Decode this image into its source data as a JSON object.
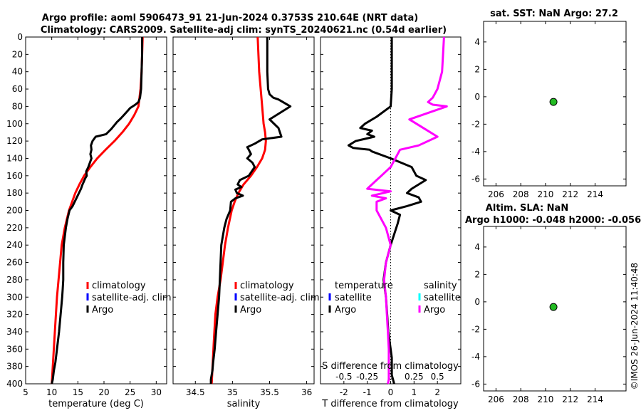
{
  "header": {
    "title_line1": "Argo profile: aoml 5906473_91 21-Jun-2024 0.3753S 210.64E (NRT data)",
    "title_line2": "Climatology: CARS2009. Satellite-adj clim: synTS_20240621.nc (0.54d earlier)",
    "sst_title": "sat. SST: NaN Argo: 27.2",
    "sla_title_line1": "Altim. SLA: NaN",
    "sla_title_line2": "Argo h1000: -0.048 h2000: -0.056",
    "timestamp": "©IMOS 26-Jun-2024 11:40:48"
  },
  "colors": {
    "climatology": "#ff0000",
    "satellite": "#0000ff",
    "argo": "#000000",
    "salinity_argo": "#ff00ff",
    "salinity_satellite": "#00ffff",
    "marker": "#22bb22"
  },
  "legends": {
    "temp": [
      "climatology",
      "satellite-adj. clim",
      "Argo"
    ],
    "sal": [
      "climatology",
      "satellite-adj. clim",
      "Argo"
    ],
    "diff_temp_heading": "temperature",
    "diff_sal_heading": "salinity",
    "diff_temp": [
      "satellite",
      "Argo"
    ],
    "diff_sal": [
      "satellite",
      "Argo"
    ]
  },
  "chart_data": [
    {
      "id": "temperature",
      "type": "line",
      "xlabel": "temperature (deg C)",
      "ylabel": "",
      "xlim": [
        5,
        32
      ],
      "ylim": [
        400,
        0
      ],
      "xticks": [
        5,
        10,
        15,
        20,
        25,
        30
      ],
      "yticks": [
        0,
        20,
        40,
        60,
        80,
        100,
        120,
        140,
        160,
        180,
        200,
        220,
        240,
        260,
        280,
        300,
        320,
        340,
        360,
        380,
        400
      ],
      "series": [
        {
          "name": "climatology",
          "color": "#ff0000",
          "x": [
            27.4,
            27.2,
            27.0,
            26.6,
            25.8,
            24.8,
            23.5,
            22.0,
            20.3,
            18.7,
            17.4,
            16.2,
            15.3,
            14.5,
            13.9,
            13.3,
            12.9,
            12.5,
            12.2,
            11.9,
            11.6,
            11.3,
            11.0,
            10.8,
            10.5,
            10.2,
            10.0
          ],
          "y": [
            0,
            40,
            60,
            80,
            90,
            100,
            110,
            120,
            130,
            140,
            150,
            160,
            170,
            180,
            190,
            200,
            210,
            220,
            230,
            240,
            260,
            280,
            300,
            320,
            350,
            380,
            400
          ]
        },
        {
          "name": "Argo",
          "color": "#000000",
          "x": [
            27.3,
            27.3,
            27.2,
            27.1,
            26.9,
            26.6,
            26.0,
            25.0,
            24.4,
            23.8,
            23.2,
            22.5,
            21.4,
            20.4,
            18.4,
            17.8,
            17.5,
            17.6,
            17.4,
            17.6,
            17.3,
            17.0,
            16.6,
            16.7,
            16.4,
            16.2,
            15.9,
            15.6,
            15.2,
            14.8,
            14.4,
            14.0,
            13.4,
            13.0,
            12.7,
            12.5,
            12.3,
            12.2,
            12.2,
            12.1,
            12.0,
            11.7,
            11.4,
            11.0,
            10.7,
            10.4,
            10.2,
            10.0
          ],
          "y": [
            0,
            20,
            40,
            60,
            70,
            75,
            78,
            82,
            86,
            90,
            94,
            98,
            106,
            112,
            115,
            120,
            125,
            130,
            135,
            140,
            145,
            150,
            155,
            160,
            163,
            166,
            170,
            175,
            180,
            185,
            190,
            195,
            200,
            210,
            220,
            230,
            240,
            260,
            280,
            290,
            300,
            320,
            340,
            360,
            375,
            385,
            395,
            400
          ]
        }
      ],
      "legend": [
        "climatology",
        "satellite-adj. clim",
        "Argo"
      ]
    },
    {
      "id": "salinity",
      "type": "line",
      "xlabel": "salinity",
      "ylabel": "",
      "xlim": [
        34.2,
        36.1
      ],
      "ylim": [
        400,
        0
      ],
      "xticks": [
        34.5,
        35,
        35.5,
        36
      ],
      "series": [
        {
          "name": "climatology",
          "color": "#ff0000",
          "x": [
            35.34,
            35.36,
            35.38,
            35.4,
            35.42,
            35.44,
            35.45,
            35.44,
            35.4,
            35.33,
            35.25,
            35.15,
            35.08,
            35.03,
            34.99,
            34.94,
            34.9,
            34.87,
            34.84,
            34.8,
            34.77,
            34.75,
            34.72
          ],
          "y": [
            0,
            40,
            60,
            80,
            100,
            110,
            120,
            130,
            140,
            150,
            160,
            170,
            180,
            190,
            200,
            220,
            240,
            260,
            280,
            300,
            320,
            350,
            400
          ]
        },
        {
          "name": "Argo",
          "color": "#000000",
          "x": [
            35.47,
            35.47,
            35.48,
            35.5,
            35.55,
            35.62,
            35.78,
            35.5,
            35.62,
            35.66,
            35.4,
            35.3,
            35.2,
            35.22,
            35.25,
            35.2,
            35.27,
            35.3,
            35.22,
            35.1,
            35.07,
            35.12,
            35.04,
            35.06,
            35.14,
            35.04,
            34.98,
            34.97,
            34.92,
            34.89,
            34.85,
            34.84,
            34.83,
            34.82,
            34.8,
            34.78,
            34.76,
            34.74,
            34.73,
            34.71,
            34.71
          ],
          "y": [
            0,
            40,
            60,
            66,
            70,
            72,
            80,
            95,
            105,
            115,
            118,
            123,
            127,
            130,
            135,
            140,
            145,
            150,
            160,
            165,
            170,
            173,
            176,
            180,
            183,
            186,
            190,
            200,
            210,
            220,
            240,
            260,
            280,
            300,
            320,
            340,
            360,
            375,
            385,
            395,
            400
          ]
        }
      ],
      "legend": [
        "climatology",
        "satellite-adj. clim",
        "Argo"
      ]
    },
    {
      "id": "difference",
      "type": "line",
      "xlabel": "T difference from climatology",
      "top_label": "S difference from climatology",
      "xlim": [
        -3,
        3
      ],
      "ylim": [
        400,
        0
      ],
      "xticks": [
        -2,
        -1,
        0,
        1,
        2
      ],
      "s_ticks": [
        -0.5,
        -0.25,
        0,
        0.25,
        0.5
      ],
      "series": [
        {
          "name": "temperature Argo",
          "color": "#000000",
          "x": [
            0.05,
            0.05,
            0.05,
            0.0,
            -0.6,
            -1.1,
            -1.3,
            -0.8,
            -1.0,
            -0.7,
            -1.5,
            -1.8,
            -1.6,
            -0.9,
            -0.8,
            0.0,
            0.9,
            1.1,
            1.5,
            1.2,
            0.9,
            0.7,
            1.2,
            1.3,
            0.7,
            0.0,
            0.4,
            0.3,
            0.0,
            -0.2,
            -0.3,
            -0.2,
            -0.15,
            -0.1,
            0.0,
            0.05,
            0.05,
            0.05,
            0.1,
            0.15
          ],
          "y": [
            0,
            30,
            60,
            80,
            92,
            100,
            105,
            108,
            112,
            115,
            120,
            125,
            128,
            130,
            132,
            140,
            150,
            160,
            165,
            170,
            175,
            180,
            185,
            190,
            195,
            200,
            205,
            215,
            240,
            260,
            280,
            300,
            320,
            340,
            360,
            370,
            380,
            390,
            395,
            400
          ]
        },
        {
          "name": "salinity Argo",
          "color": "#ff00ff",
          "x": [
            0.57,
            0.55,
            0.5,
            0.45,
            0.4,
            0.45,
            0.6,
            0.2,
            0.35,
            0.5,
            0.3,
            0.1,
            0.05,
            0.0,
            -0.1,
            -0.15,
            -0.2,
            -0.25,
            0.0,
            -0.2,
            -0.05,
            -0.15,
            -0.15,
            -0.05,
            0.0,
            -0.05,
            -0.07,
            -0.05,
            -0.04,
            -0.03,
            -0.02,
            -0.02,
            -0.02,
            -0.03
          ],
          "y": [
            0,
            40,
            60,
            70,
            75,
            78,
            80,
            95,
            105,
            115,
            125,
            130,
            140,
            150,
            160,
            165,
            170,
            175,
            178,
            183,
            186,
            190,
            200,
            220,
            240,
            260,
            280,
            300,
            320,
            340,
            360,
            380,
            395,
            400
          ]
        }
      ],
      "legend_temperature": [
        "satellite",
        "Argo"
      ],
      "legend_salinity": [
        "satellite",
        "Argo"
      ]
    },
    {
      "id": "sst-map",
      "type": "scatter",
      "title": "sat. SST: NaN Argo: 27.2",
      "xlim": [
        205,
        216.5
      ],
      "ylim": [
        -6.5,
        5.5
      ],
      "xticks": [
        206,
        208,
        210,
        212,
        214
      ],
      "yticks": [
        -6,
        -4,
        -2,
        0,
        2,
        4
      ],
      "points": [
        {
          "x": 210.64,
          "y": -0.3753
        }
      ]
    },
    {
      "id": "sla-map",
      "type": "scatter",
      "title": "Altim. SLA: NaN",
      "xlim": [
        205,
        216.5
      ],
      "ylim": [
        -6.5,
        5.5
      ],
      "xticks": [
        206,
        208,
        210,
        212,
        214
      ],
      "yticks": [
        -6,
        -4,
        -2,
        0,
        2,
        4
      ],
      "points": [
        {
          "x": 210.64,
          "y": -0.3753
        }
      ]
    }
  ]
}
